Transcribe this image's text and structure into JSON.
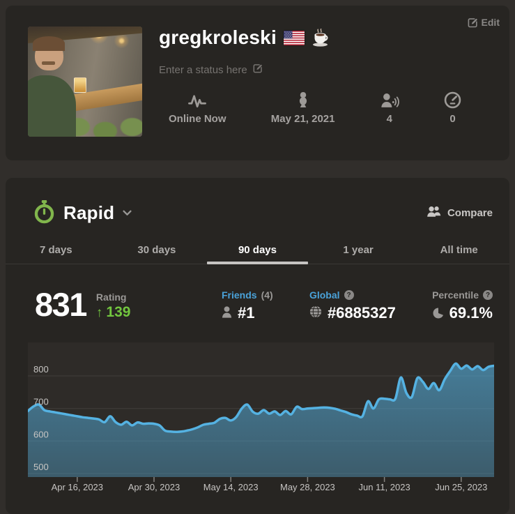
{
  "profile_card": {
    "edit_button": "Edit",
    "username": "gregkroleski",
    "badges": [
      "us-flag",
      "coffee"
    ],
    "status_placeholder": "Enter a status here",
    "stats": [
      {
        "icon": "pulse-icon",
        "label": "Online Now"
      },
      {
        "icon": "pawn-icon",
        "label": "May 21, 2021"
      },
      {
        "icon": "friends-icon",
        "label": "4"
      },
      {
        "icon": "speedometer-icon",
        "label": "0"
      }
    ]
  },
  "stats_card": {
    "mode_label": "Rapid",
    "compare_label": "Compare",
    "tabs": [
      {
        "label": "7 days",
        "active": false
      },
      {
        "label": "30 days",
        "active": false
      },
      {
        "label": "90 days",
        "active": true
      },
      {
        "label": "1 year",
        "active": false
      },
      {
        "label": "All time",
        "active": false
      }
    ],
    "rating": {
      "value": "831",
      "label": "Rating",
      "change": "139",
      "direction": "up"
    },
    "columns": {
      "friends": {
        "label": "Friends",
        "count": "(4)",
        "value": "#1"
      },
      "global": {
        "label": "Global",
        "value": "#6885327",
        "help": true
      },
      "percentile": {
        "label": "Percentile",
        "value": "69.1%",
        "help": true
      }
    }
  },
  "icons": {
    "rating_up_arrow": "↑",
    "help_glyph": "?"
  },
  "chart_data": {
    "type": "area",
    "series_name": "Rapid rating",
    "x_start": "2023-04-07",
    "x_interval_days": 1,
    "values": [
      692,
      706,
      712,
      695,
      691,
      688,
      685,
      682,
      679,
      676,
      673,
      671,
      669,
      666,
      658,
      676,
      658,
      650,
      659,
      648,
      657,
      653,
      654,
      653,
      648,
      632,
      629,
      628,
      629,
      632,
      636,
      642,
      650,
      653,
      656,
      668,
      671,
      663,
      674,
      700,
      712,
      690,
      684,
      695,
      684,
      691,
      680,
      692,
      682,
      705,
      698,
      700,
      701,
      702,
      703,
      702,
      699,
      694,
      689,
      682,
      678,
      676,
      722,
      700,
      728,
      730,
      728,
      730,
      795,
      748,
      735,
      793,
      782,
      760,
      778,
      756,
      790,
      815,
      838,
      822,
      832,
      820,
      830,
      818,
      828,
      831
    ],
    "x_tick_labels": [
      "Apr 16, 2023",
      "Apr 30, 2023",
      "May 14, 2023",
      "May 28, 2023",
      "Jun 11, 2023",
      "Jun 25, 2023"
    ],
    "x_tick_day_indices": [
      9,
      23,
      37,
      51,
      65,
      79
    ],
    "y_ticks": [
      500,
      600,
      700,
      800
    ],
    "ylim": [
      489,
      903
    ],
    "grid": "horizontal",
    "legend": "none",
    "line_color": "#55b2e2",
    "fill_top_color": "rgba(85,178,226,0.6)",
    "fill_bottom_color": "rgba(85,178,226,0.36)",
    "plot_bg": "#2e2b28"
  },
  "colors": {
    "page_bg": "#312e2b",
    "card_bg": "#272522",
    "accent_green": "#72c63f",
    "brand_green": "#81b64c",
    "link_blue": "#4aa2d9",
    "muted_text": "#9a9896"
  }
}
